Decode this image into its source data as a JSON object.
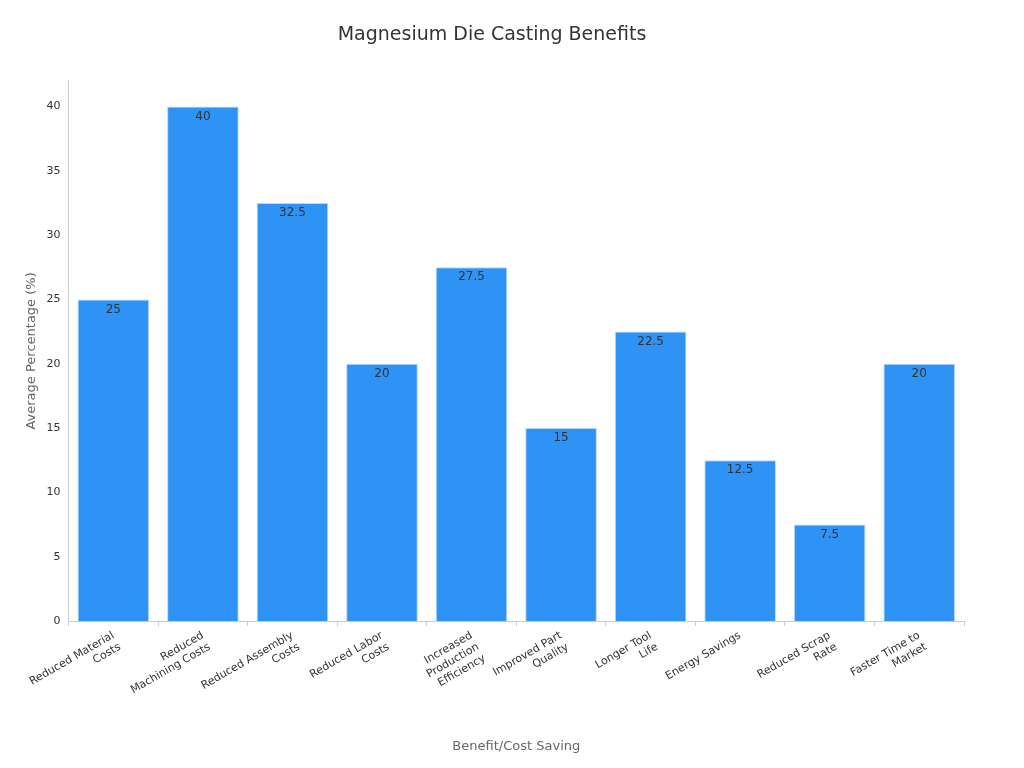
{
  "chart_data": {
    "type": "bar",
    "title": "Magnesium Die Casting Benefits",
    "xlabel": "Benefit/Cost Saving",
    "ylabel": "Average Percentage (%)",
    "categories": [
      "Reduced Material Costs",
      "Reduced Machining Costs",
      "Reduced Assembly Costs",
      "Reduced Labor Costs",
      "Increased Production Efficiency",
      "Improved Part Quality",
      "Longer Tool Life",
      "Energy Savings",
      "Reduced Scrap Rate",
      "Faster Time to Market"
    ],
    "values": [
      25,
      40,
      32.5,
      20,
      27.5,
      15,
      22.5,
      12.5,
      7.5,
      20
    ],
    "color": "#2e93f5",
    "ylim": [
      0,
      42
    ],
    "yticks": [
      0,
      5,
      10,
      15,
      20,
      25,
      30,
      35,
      40
    ],
    "grid": false,
    "legend": false,
    "data_labels": true
  }
}
